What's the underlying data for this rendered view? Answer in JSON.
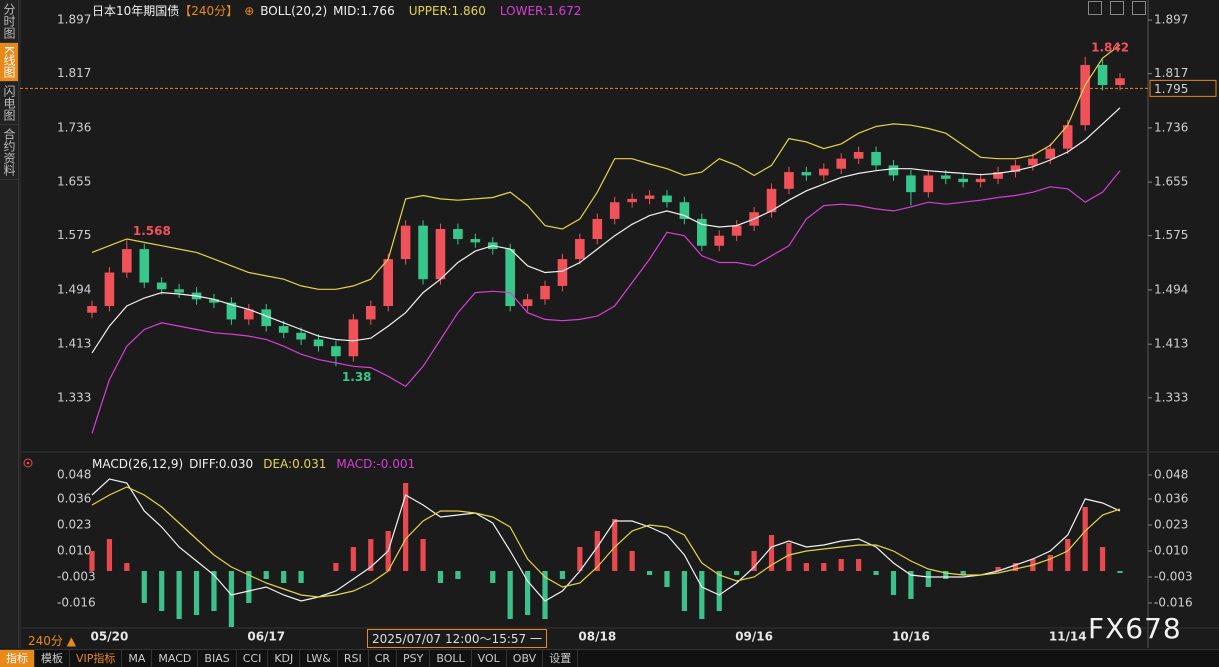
{
  "chart_data": [
    {
      "type": "candlestick",
      "title": "日本10年期国债",
      "period": "【240分】",
      "indicator": "BOLL(20,2)",
      "categories": [
        null,
        "05/20",
        null,
        null,
        null,
        null,
        null,
        null,
        null,
        null,
        "06/17",
        null,
        null,
        null,
        null,
        null,
        null,
        null,
        null,
        null,
        null,
        null,
        null,
        null,
        null,
        null,
        null,
        null,
        null,
        "08/18",
        null,
        null,
        null,
        null,
        null,
        null,
        null,
        null,
        "09/16",
        null,
        null,
        null,
        null,
        null,
        null,
        null,
        null,
        "10/16",
        null,
        null,
        null,
        null,
        null,
        null,
        null,
        null,
        "11/14",
        null,
        null,
        null
      ],
      "open": [
        1.46,
        1.47,
        1.52,
        1.555,
        1.505,
        1.495,
        1.49,
        1.48,
        1.475,
        1.45,
        1.465,
        1.44,
        1.43,
        1.42,
        1.41,
        1.395,
        1.45,
        1.47,
        1.54,
        1.59,
        1.51,
        1.585,
        1.57,
        1.565,
        1.555,
        1.47,
        1.48,
        1.5,
        1.54,
        1.57,
        1.6,
        1.625,
        1.63,
        1.635,
        1.625,
        1.6,
        1.56,
        1.575,
        1.59,
        1.61,
        1.645,
        1.67,
        1.665,
        1.675,
        1.69,
        1.7,
        1.68,
        1.665,
        1.64,
        1.665,
        1.66,
        1.655,
        1.66,
        1.67,
        1.68,
        1.69,
        1.705,
        1.74,
        1.83,
        1.8
      ],
      "high": [
        1.478,
        1.528,
        1.568,
        1.563,
        1.513,
        1.503,
        1.498,
        1.488,
        1.483,
        1.473,
        1.473,
        1.448,
        1.438,
        1.428,
        1.418,
        1.458,
        1.478,
        1.548,
        1.598,
        1.598,
        1.593,
        1.593,
        1.578,
        1.573,
        1.563,
        1.488,
        1.508,
        1.548,
        1.578,
        1.608,
        1.633,
        1.638,
        1.643,
        1.643,
        1.633,
        1.608,
        1.583,
        1.598,
        1.618,
        1.653,
        1.678,
        1.678,
        1.683,
        1.698,
        1.708,
        1.708,
        1.688,
        1.673,
        1.673,
        1.673,
        1.668,
        1.668,
        1.678,
        1.688,
        1.698,
        1.713,
        1.748,
        1.842,
        1.838,
        1.818
      ],
      "low": [
        1.452,
        1.462,
        1.512,
        1.497,
        1.487,
        1.482,
        1.472,
        1.467,
        1.442,
        1.442,
        1.432,
        1.422,
        1.412,
        1.402,
        1.38,
        1.387,
        1.442,
        1.462,
        1.532,
        1.502,
        1.502,
        1.562,
        1.557,
        1.547,
        1.462,
        1.462,
        1.472,
        1.492,
        1.532,
        1.562,
        1.592,
        1.617,
        1.622,
        1.617,
        1.592,
        1.552,
        1.552,
        1.567,
        1.582,
        1.602,
        1.637,
        1.657,
        1.657,
        1.667,
        1.682,
        1.672,
        1.657,
        1.62,
        1.632,
        1.652,
        1.647,
        1.647,
        1.652,
        1.662,
        1.672,
        1.682,
        1.697,
        1.732,
        1.792,
        1.792
      ],
      "close": [
        1.47,
        1.52,
        1.555,
        1.505,
        1.495,
        1.49,
        1.48,
        1.475,
        1.45,
        1.465,
        1.44,
        1.43,
        1.42,
        1.41,
        1.395,
        1.45,
        1.47,
        1.54,
        1.59,
        1.51,
        1.585,
        1.57,
        1.565,
        1.555,
        1.47,
        1.48,
        1.5,
        1.54,
        1.57,
        1.6,
        1.625,
        1.63,
        1.635,
        1.625,
        1.6,
        1.56,
        1.575,
        1.59,
        1.61,
        1.645,
        1.67,
        1.665,
        1.675,
        1.69,
        1.7,
        1.68,
        1.665,
        1.64,
        1.665,
        1.66,
        1.655,
        1.66,
        1.67,
        1.68,
        1.69,
        1.705,
        1.74,
        1.83,
        1.8,
        1.81
      ],
      "up_color": "#f0525a",
      "down_color": "#38c78b",
      "series": [
        {
          "name": "MID:1.766",
          "color": "#f2f2f2",
          "values": [
            1.4,
            1.44,
            1.47,
            1.482,
            1.49,
            1.488,
            1.485,
            1.48,
            1.472,
            1.465,
            1.455,
            1.445,
            1.435,
            1.425,
            1.42,
            1.418,
            1.422,
            1.44,
            1.46,
            1.49,
            1.51,
            1.535,
            1.552,
            1.56,
            1.555,
            1.53,
            1.52,
            1.522,
            1.535,
            1.555,
            1.575,
            1.592,
            1.605,
            1.612,
            1.605,
            1.592,
            1.588,
            1.59,
            1.6,
            1.612,
            1.628,
            1.642,
            1.652,
            1.662,
            1.668,
            1.672,
            1.675,
            1.675,
            1.672,
            1.67,
            1.668,
            1.666,
            1.668,
            1.672,
            1.678,
            1.688,
            1.7,
            1.718,
            1.742,
            1.766
          ]
        },
        {
          "name": "UPPER:1.860",
          "color": "#e3d44a",
          "values": [
            1.55,
            1.56,
            1.57,
            1.565,
            1.56,
            1.555,
            1.55,
            1.54,
            1.53,
            1.52,
            1.515,
            1.51,
            1.5,
            1.495,
            1.495,
            1.5,
            1.51,
            1.54,
            1.63,
            1.635,
            1.63,
            1.628,
            1.63,
            1.632,
            1.64,
            1.62,
            1.59,
            1.585,
            1.6,
            1.64,
            1.69,
            1.69,
            1.682,
            1.675,
            1.665,
            1.67,
            1.69,
            1.68,
            1.665,
            1.68,
            1.72,
            1.715,
            1.705,
            1.712,
            1.728,
            1.738,
            1.742,
            1.74,
            1.735,
            1.728,
            1.71,
            1.692,
            1.69,
            1.69,
            1.695,
            1.71,
            1.74,
            1.8,
            1.84,
            1.86
          ]
        },
        {
          "name": "LOWER:1.672",
          "color": "#d63fd6",
          "values": [
            1.28,
            1.36,
            1.41,
            1.435,
            1.445,
            1.44,
            1.435,
            1.43,
            1.428,
            1.425,
            1.42,
            1.41,
            1.398,
            1.39,
            1.385,
            1.38,
            1.378,
            1.365,
            1.35,
            1.38,
            1.42,
            1.46,
            1.49,
            1.492,
            1.49,
            1.46,
            1.45,
            1.448,
            1.45,
            1.455,
            1.47,
            1.505,
            1.54,
            1.58,
            1.575,
            1.545,
            1.535,
            1.535,
            1.53,
            1.545,
            1.56,
            1.6,
            1.62,
            1.622,
            1.62,
            1.615,
            1.612,
            1.618,
            1.625,
            1.622,
            1.625,
            1.628,
            1.632,
            1.635,
            1.64,
            1.648,
            1.645,
            1.625,
            1.64,
            1.672
          ]
        }
      ],
      "annotations": [
        {
          "value": 1.568,
          "color": "#f0525a"
        },
        {
          "value": 1.38,
          "color": "#38c78b"
        },
        {
          "value": 1.842,
          "color": "#f0525a"
        }
      ],
      "price_line": 1.795,
      "price_line_color": "#e8891a",
      "ylim": [
        1.255,
        1.912
      ],
      "yticks": [
        1.333,
        1.413,
        1.494,
        1.575,
        1.655,
        1.736,
        1.817,
        1.897
      ]
    },
    {
      "type": "macd",
      "title": "MACD(26,12,9)",
      "series": [
        {
          "name": "DIFF:0.030",
          "color": "#f2f2f2",
          "values": [
            0.038,
            0.046,
            0.044,
            0.03,
            0.022,
            0.012,
            0.005,
            -0.002,
            -0.012,
            -0.01,
            -0.008,
            -0.012,
            -0.015,
            -0.013,
            -0.01,
            -0.004,
            0.002,
            0.01,
            0.038,
            0.033,
            0.027,
            0.028,
            0.029,
            0.024,
            0.01,
            -0.005,
            -0.015,
            -0.01,
            0.0,
            0.012,
            0.025,
            0.025,
            0.022,
            0.018,
            0.008,
            -0.008,
            -0.012,
            -0.006,
            0.002,
            0.012,
            0.015,
            0.012,
            0.013,
            0.015,
            0.016,
            0.012,
            0.004,
            -0.002,
            -0.003,
            -0.003,
            -0.003,
            -0.002,
            0.0,
            0.003,
            0.006,
            0.01,
            0.018,
            0.036,
            0.034,
            0.03
          ]
        },
        {
          "name": "DEA:0.031",
          "color": "#e3d44a",
          "values": [
            0.033,
            0.038,
            0.042,
            0.038,
            0.032,
            0.024,
            0.016,
            0.008,
            0.002,
            -0.002,
            -0.006,
            -0.009,
            -0.012,
            -0.013,
            -0.012,
            -0.01,
            -0.006,
            0.0,
            0.016,
            0.025,
            0.03,
            0.03,
            0.029,
            0.027,
            0.022,
            0.006,
            -0.003,
            -0.008,
            -0.006,
            0.002,
            0.012,
            0.02,
            0.023,
            0.022,
            0.018,
            0.004,
            -0.002,
            -0.005,
            -0.003,
            0.003,
            0.008,
            0.01,
            0.011,
            0.012,
            0.013,
            0.013,
            0.01,
            0.005,
            0.001,
            -0.001,
            -0.002,
            -0.002,
            -0.001,
            0.001,
            0.003,
            0.006,
            0.01,
            0.02,
            0.028,
            0.031
          ]
        },
        {
          "name": "MACD:-0.001",
          "color": "#d63fd6",
          "up_color": "#e8494f",
          "down_color": "#3cc08c",
          "values": [
            0.01,
            0.016,
            0.004,
            -0.016,
            -0.02,
            -0.024,
            -0.022,
            -0.02,
            -0.028,
            -0.016,
            -0.004,
            -0.006,
            -0.006,
            0.0,
            0.004,
            0.012,
            0.016,
            0.02,
            0.044,
            0.016,
            -0.006,
            -0.004,
            0.0,
            -0.006,
            -0.024,
            -0.022,
            -0.024,
            -0.004,
            0.012,
            0.02,
            0.026,
            0.01,
            -0.002,
            -0.008,
            -0.02,
            -0.024,
            -0.02,
            -0.002,
            0.01,
            0.018,
            0.014,
            0.004,
            0.004,
            0.006,
            0.006,
            -0.002,
            -0.012,
            -0.014,
            -0.008,
            -0.004,
            -0.002,
            0.0,
            0.002,
            0.004,
            0.006,
            0.008,
            0.016,
            0.032,
            0.012,
            -0.001
          ]
        }
      ],
      "ylim": [
        -0.0285,
        0.053
      ],
      "yticks": [
        0.048,
        0.036,
        0.023,
        {
          "value": 0.01,
          "label": "0.010"
        },
        -0.003,
        -0.016
      ]
    }
  ],
  "sidebar": [
    "分时图",
    "K线图",
    "闪电图",
    "合约资料"
  ],
  "footer": {
    "period": "240分 ▲",
    "crosshair": "2025/07/07 12:00～15:57 一",
    "watermark": "FX678"
  },
  "toolbar": [
    "指标",
    "模板",
    "VIP指标",
    "MA",
    "MACD",
    "BIAS",
    "CCI",
    "KDJ",
    "LW&",
    "RSI",
    "CR",
    "PSY",
    "BOLL",
    "VOL",
    "OBV",
    "设置"
  ]
}
